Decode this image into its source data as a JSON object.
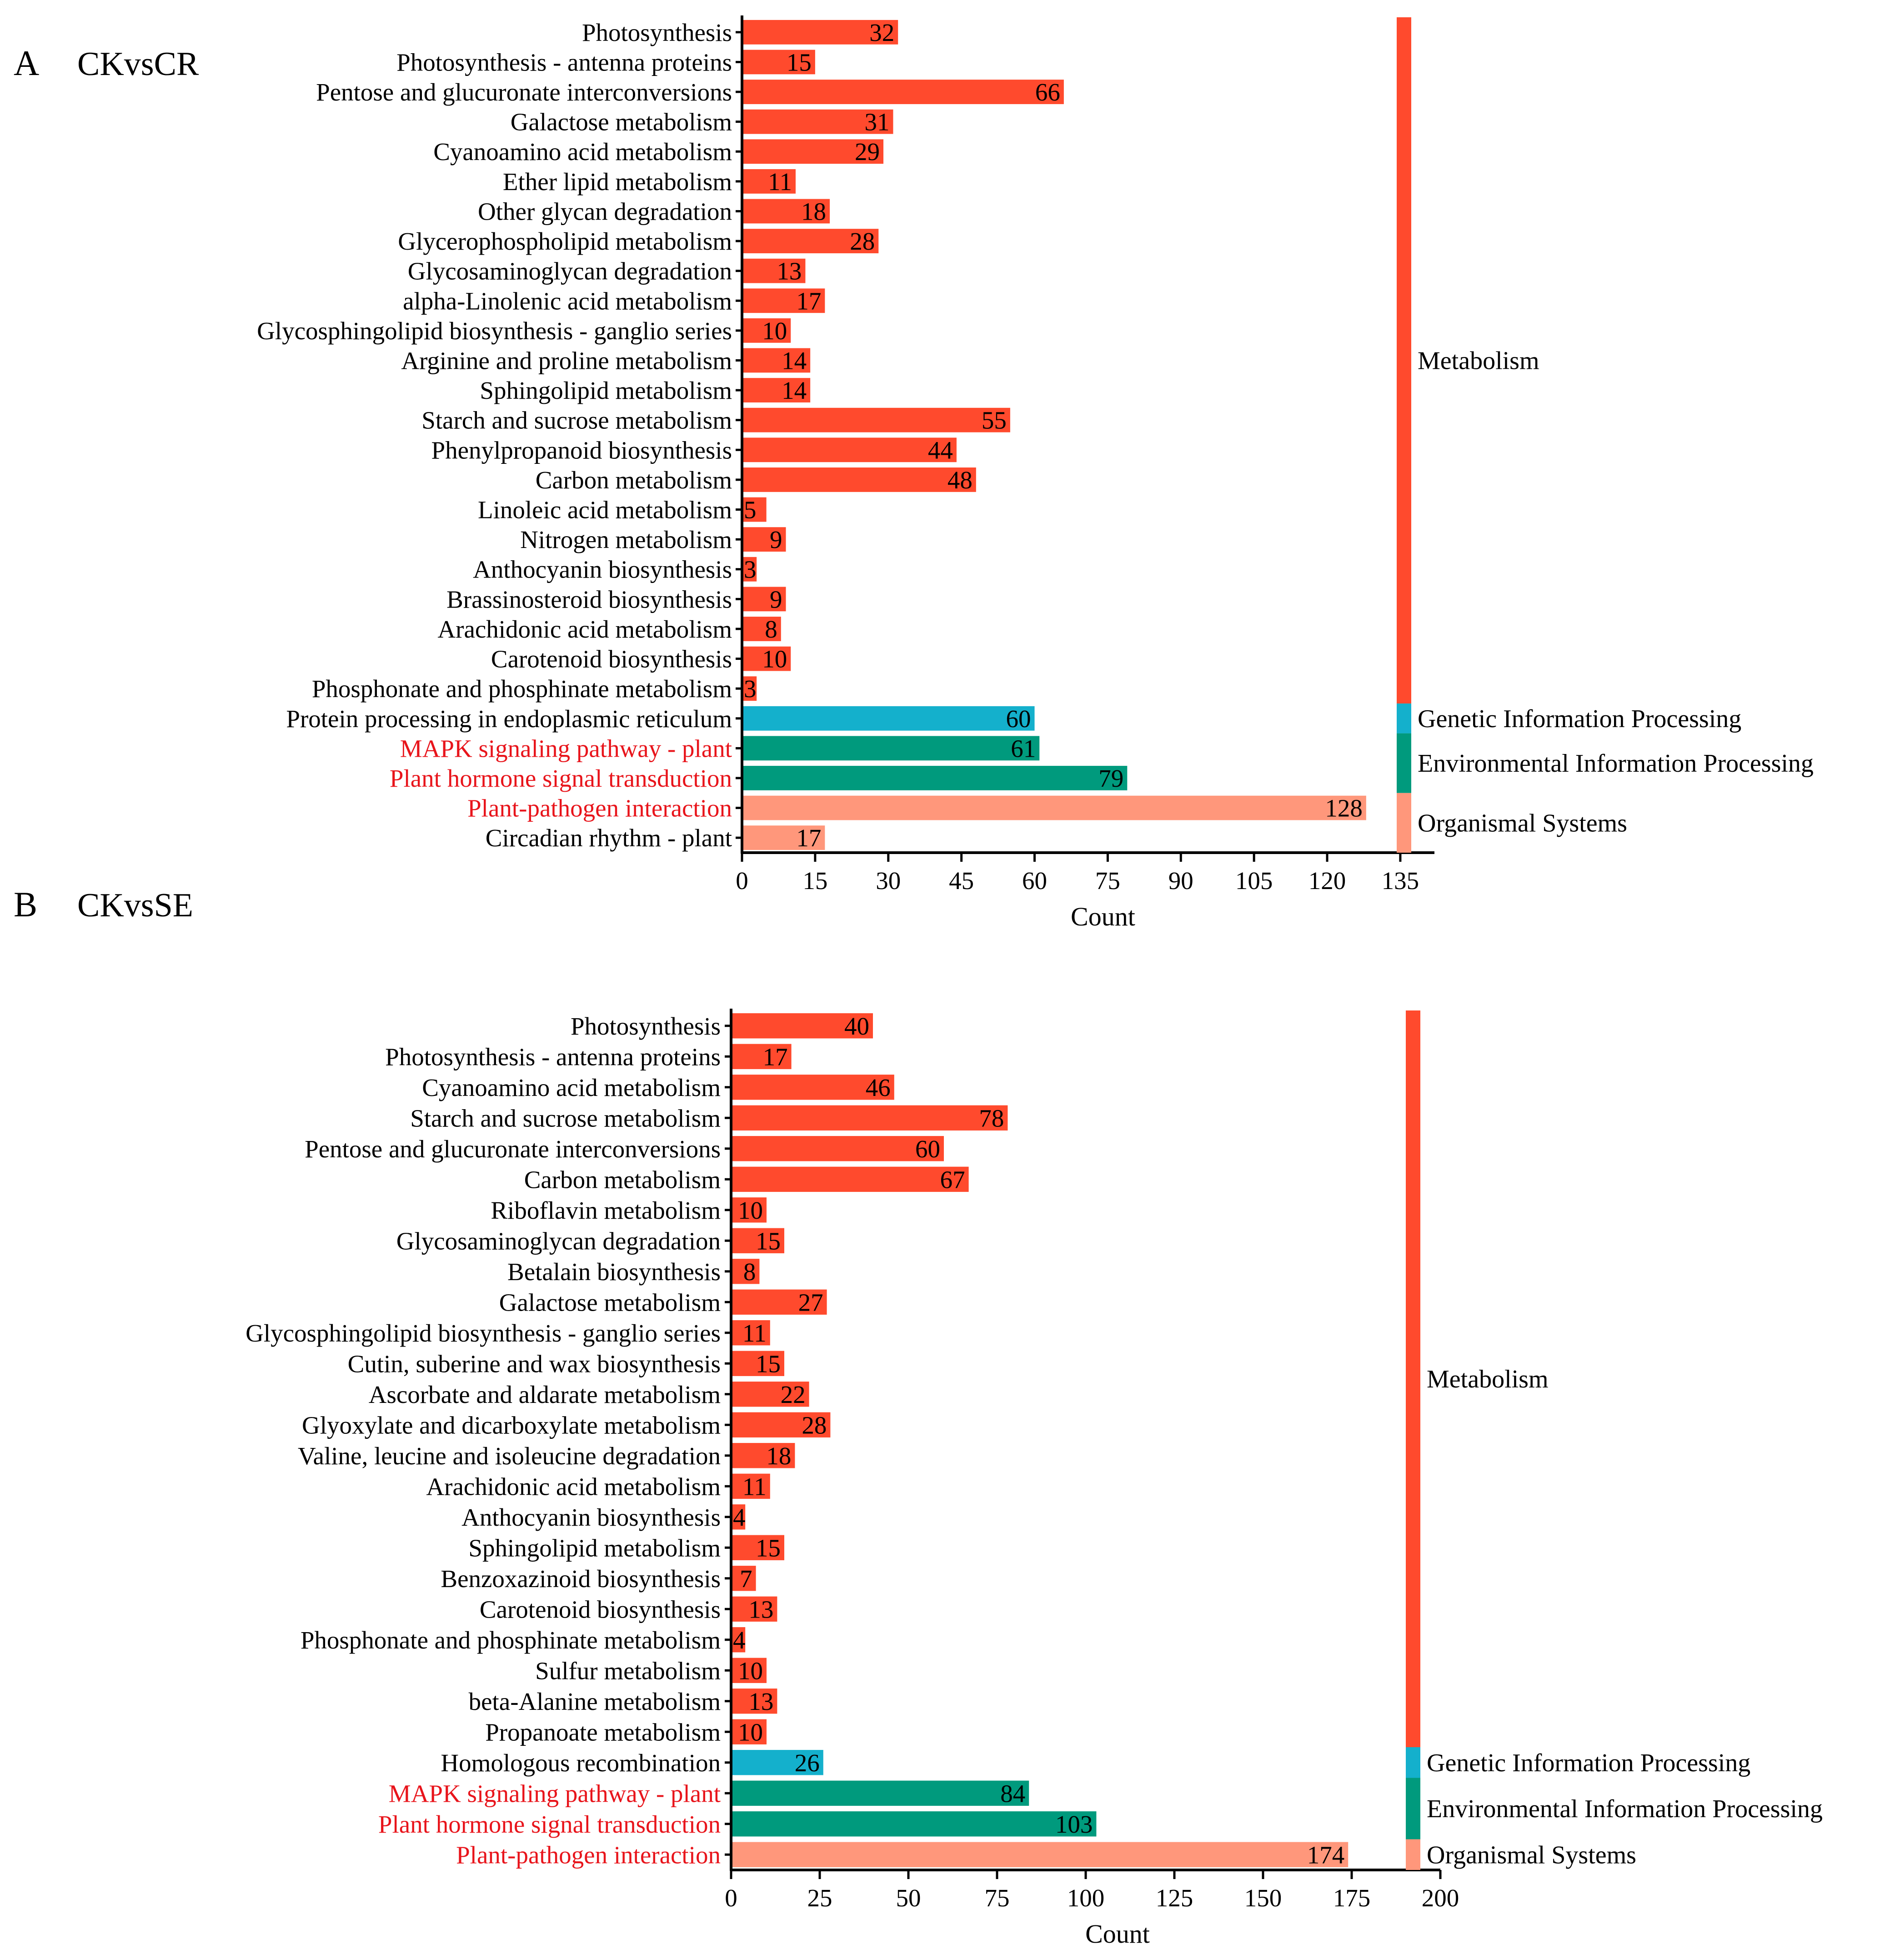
{
  "colors": {
    "metabolism": "#FF4A2D",
    "genetic": "#14B0CC",
    "environmental": "#009A7D",
    "organismal": "#FF977B",
    "highlight_text": "#E8141B",
    "text": "#000000"
  },
  "chart_data": [
    {
      "type": "bar",
      "orientation": "horizontal",
      "panel": "A",
      "title": "CKvsCR",
      "xlabel": "Count",
      "ylabel": "",
      "xlim": [
        0,
        142
      ],
      "ticks": [
        0,
        15,
        30,
        45,
        60,
        75,
        90,
        105,
        120,
        135
      ],
      "grid": false,
      "categories": [
        "Photosynthesis",
        "Photosynthesis - antenna proteins",
        "Pentose and glucuronate interconversions",
        "Galactose metabolism",
        "Cyanoamino acid metabolism",
        "Ether lipid metabolism",
        "Other glycan degradation",
        "Glycerophospholipid metabolism",
        "Glycosaminoglycan degradation",
        "alpha-Linolenic acid metabolism",
        "Glycosphingolipid biosynthesis - ganglio series",
        "Arginine and proline metabolism",
        "Sphingolipid metabolism",
        "Starch and sucrose metabolism",
        "Phenylpropanoid biosynthesis",
        "Carbon metabolism",
        "Linoleic acid metabolism",
        "Nitrogen metabolism",
        "Anthocyanin biosynthesis",
        "Brassinosteroid biosynthesis",
        "Arachidonic acid metabolism",
        "Carotenoid biosynthesis",
        "Phosphonate and phosphinate metabolism",
        "Protein processing in endoplasmic reticulum",
        "MAPK signaling pathway - plant",
        "Plant hormone signal transduction",
        "Plant-pathogen interaction",
        "Circadian rhythm - plant"
      ],
      "values": [
        32,
        15,
        66,
        31,
        29,
        11,
        18,
        28,
        13,
        17,
        10,
        14,
        14,
        55,
        44,
        48,
        5,
        9,
        3,
        9,
        8,
        10,
        3,
        60,
        61,
        79,
        128,
        17
      ],
      "value_labels": [
        "32",
        "15",
        "66",
        "31",
        "29",
        "11",
        "18",
        "28",
        "13",
        "17",
        "10",
        "14",
        "14",
        "55",
        "44",
        "48",
        "5",
        "9",
        "3",
        "9",
        "8",
        "10",
        "3",
        "60",
        "61",
        "79",
        "128",
        "17"
      ],
      "bar_groups": [
        "metabolism",
        "metabolism",
        "metabolism",
        "metabolism",
        "metabolism",
        "metabolism",
        "metabolism",
        "metabolism",
        "metabolism",
        "metabolism",
        "metabolism",
        "metabolism",
        "metabolism",
        "metabolism",
        "metabolism",
        "metabolism",
        "metabolism",
        "metabolism",
        "metabolism",
        "metabolism",
        "metabolism",
        "metabolism",
        "metabolism",
        "genetic",
        "environmental",
        "environmental",
        "organismal",
        "organismal"
      ],
      "highlighted": [
        "MAPK signaling pathway - plant",
        "Plant hormone signal transduction",
        "Plant-pathogen interaction"
      ],
      "groups": [
        {
          "key": "metabolism",
          "name": "Metabolism",
          "count": 23
        },
        {
          "key": "genetic",
          "name": "Genetic Information Processing",
          "count": 1
        },
        {
          "key": "environmental",
          "name": "Environmental Information Processing",
          "count": 2
        },
        {
          "key": "organismal",
          "name": "Organismal Systems",
          "count": 2
        }
      ]
    },
    {
      "type": "bar",
      "orientation": "horizontal",
      "panel": "B",
      "title": "CKvsSE",
      "xlabel": "Count",
      "ylabel": "",
      "xlim": [
        0,
        200
      ],
      "ticks": [
        0,
        25,
        50,
        75,
        100,
        125,
        150,
        175,
        200
      ],
      "grid": false,
      "categories": [
        "Photosynthesis",
        "Photosynthesis - antenna proteins",
        "Cyanoamino acid metabolism",
        "Starch and sucrose metabolism",
        "Pentose and glucuronate interconversions",
        "Carbon metabolism",
        "Riboflavin metabolism",
        "Glycosaminoglycan degradation",
        "Betalain biosynthesis",
        "Galactose metabolism",
        "Glycosphingolipid biosynthesis - ganglio series",
        "Cutin, suberine and wax biosynthesis",
        "Ascorbate and aldarate metabolism",
        "Glyoxylate and dicarboxylate metabolism",
        "Valine, leucine and isoleucine degradation",
        "Arachidonic acid metabolism",
        "Anthocyanin biosynthesis",
        "Sphingolipid metabolism",
        "Benzoxazinoid biosynthesis",
        "Carotenoid biosynthesis",
        "Phosphonate and phosphinate metabolism",
        "Sulfur metabolism",
        "beta-Alanine metabolism",
        "Propanoate metabolism",
        "Homologous recombination",
        "MAPK signaling pathway - plant",
        "Plant hormone signal transduction",
        "Plant-pathogen interaction"
      ],
      "values": [
        40,
        17,
        46,
        78,
        60,
        67,
        10,
        15,
        8,
        27,
        11,
        15,
        22,
        28,
        18,
        11,
        4,
        15,
        7,
        13,
        4,
        10,
        13,
        10,
        26,
        84,
        103,
        174
      ],
      "value_labels": [
        "40",
        "17",
        "46",
        "78",
        "60",
        "67",
        "10",
        "15",
        "8",
        "27",
        "11",
        "15",
        "22",
        "28",
        "18",
        "11",
        "4",
        "15",
        "7",
        "13",
        "4",
        "10",
        "13",
        "10",
        "26",
        "84",
        "103",
        "174"
      ],
      "bar_groups": [
        "metabolism",
        "metabolism",
        "metabolism",
        "metabolism",
        "metabolism",
        "metabolism",
        "metabolism",
        "metabolism",
        "metabolism",
        "metabolism",
        "metabolism",
        "metabolism",
        "metabolism",
        "metabolism",
        "metabolism",
        "metabolism",
        "metabolism",
        "metabolism",
        "metabolism",
        "metabolism",
        "metabolism",
        "metabolism",
        "metabolism",
        "metabolism",
        "genetic",
        "environmental",
        "environmental",
        "organismal"
      ],
      "highlighted": [
        "MAPK signaling pathway - plant",
        "Plant hormone signal transduction",
        "Plant-pathogen interaction"
      ],
      "groups": [
        {
          "key": "metabolism",
          "name": "Metabolism",
          "count": 24
        },
        {
          "key": "genetic",
          "name": "Genetic Information Processing",
          "count": 1
        },
        {
          "key": "environmental",
          "name": "Environmental Information Processing",
          "count": 2
        },
        {
          "key": "organismal",
          "name": "Organismal Systems",
          "count": 1
        }
      ]
    }
  ]
}
